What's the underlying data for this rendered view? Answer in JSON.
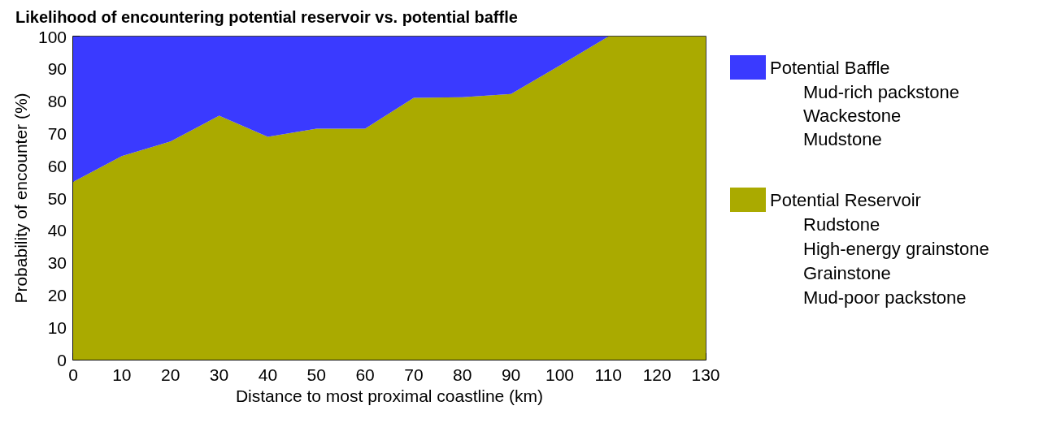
{
  "chart_data": {
    "type": "area",
    "title": "Likelihood of encountering potential reservoir vs. potential baffle",
    "xlabel": "Distance to most proximal coastline (km)",
    "ylabel": "Probability of encounter (%)",
    "x": [
      0,
      10,
      20,
      30,
      40,
      50,
      60,
      70,
      80,
      90,
      100,
      110,
      120,
      130
    ],
    "stacked": true,
    "series": [
      {
        "name": "Potential Reservoir",
        "color": "#aaaa00",
        "values": [
          55,
          63,
          67.5,
          75.5,
          69,
          71.5,
          71.5,
          81,
          81.2,
          82.2,
          91,
          100,
          100,
          100
        ]
      },
      {
        "name": "Potential Baffle",
        "color": "#3a3aff",
        "values": [
          45,
          37,
          32.5,
          24.5,
          31,
          28.5,
          28.5,
          19,
          18.8,
          17.8,
          9,
          0,
          0,
          0
        ]
      }
    ],
    "xlim": [
      0,
      130
    ],
    "xticks": [
      0,
      10,
      20,
      30,
      40,
      50,
      60,
      70,
      80,
      90,
      100,
      110,
      120,
      130
    ],
    "ylim": [
      0,
      100
    ],
    "yticks": [
      0,
      10,
      20,
      30,
      40,
      50,
      60,
      70,
      80,
      90,
      100
    ],
    "grid": false,
    "legend": "right",
    "annotations": [
      "Mud-rich packstone",
      "Wackestone",
      "Mudstone",
      "Rudstone",
      "High-energy grainstone",
      "Grainstone",
      "Mud-poor packstone"
    ]
  }
}
